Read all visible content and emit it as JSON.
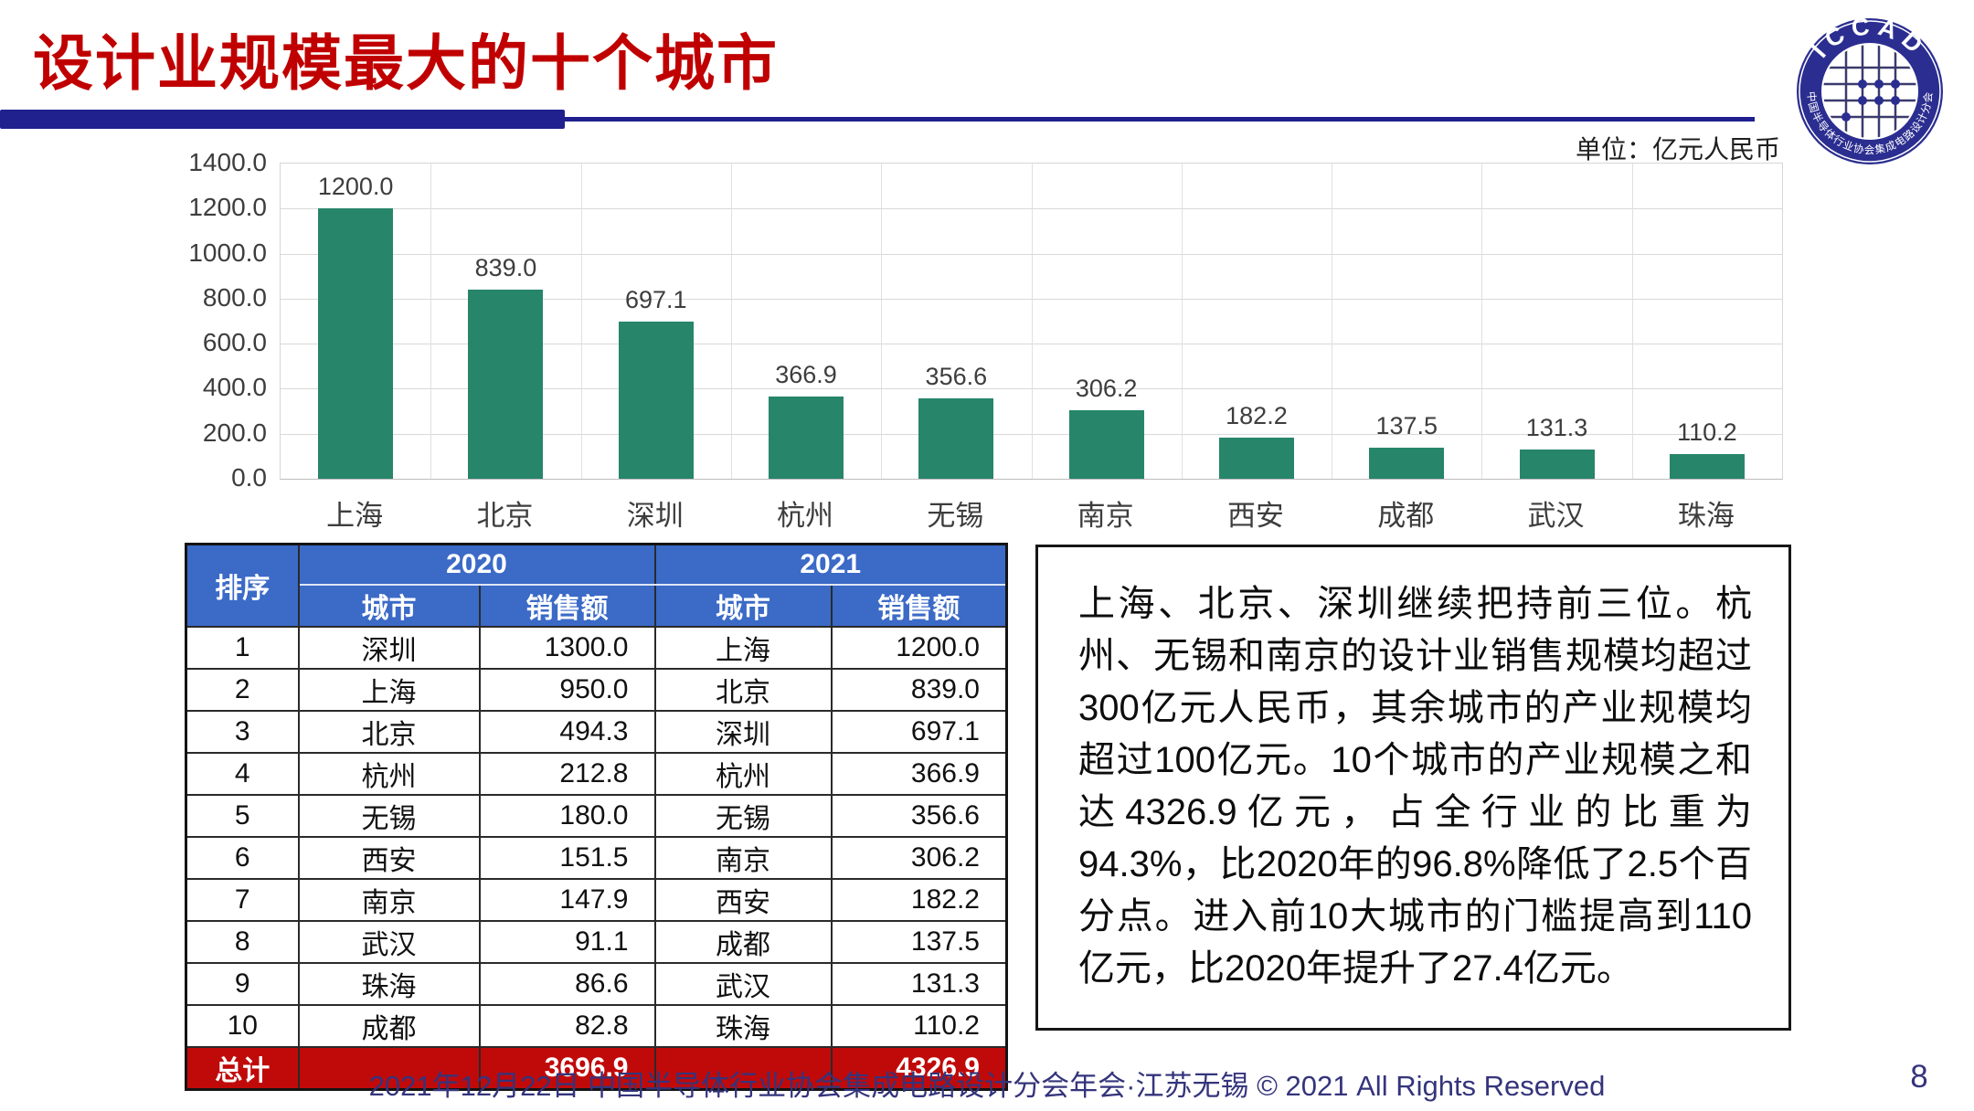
{
  "title": "设计业规模最大的十个城市",
  "unit_label": "单位：亿元人民币",
  "logo": {
    "acronym": "ICCAD",
    "ring_text": "中国半导体行业协会集成电路设计分会"
  },
  "chart_data": {
    "type": "bar",
    "title": "",
    "xlabel": "",
    "ylabel": "",
    "unit": "亿元人民币",
    "categories": [
      "上海",
      "北京",
      "深圳",
      "杭州",
      "无锡",
      "南京",
      "西安",
      "成都",
      "武汉",
      "珠海"
    ],
    "values": [
      1200.0,
      839.0,
      697.1,
      366.9,
      356.6,
      306.2,
      182.2,
      137.5,
      131.3,
      110.2
    ],
    "value_labels": [
      "1200.0",
      "839.0",
      "697.1",
      "366.9",
      "356.6",
      "306.2",
      "182.2",
      "137.5",
      "131.3",
      "110.2"
    ],
    "ylim": [
      0,
      1400
    ],
    "y_ticks": [
      "1400.0",
      "1200.0",
      "1000.0",
      "800.0",
      "600.0",
      "400.0",
      "200.0",
      "0.0"
    ],
    "grid": true,
    "legend": "none",
    "bar_color": "#27856A"
  },
  "table": {
    "col_headers": {
      "rank": "排序",
      "year2020": "2020",
      "year2021": "2021",
      "city": "城市",
      "sales": "销售额"
    },
    "rows": [
      {
        "rank": "1",
        "city2020": "深圳",
        "sales2020": "1300.0",
        "city2021": "上海",
        "sales2021": "1200.0"
      },
      {
        "rank": "2",
        "city2020": "上海",
        "sales2020": "950.0",
        "city2021": "北京",
        "sales2021": "839.0"
      },
      {
        "rank": "3",
        "city2020": "北京",
        "sales2020": "494.3",
        "city2021": "深圳",
        "sales2021": "697.1"
      },
      {
        "rank": "4",
        "city2020": "杭州",
        "sales2020": "212.8",
        "city2021": "杭州",
        "sales2021": "366.9"
      },
      {
        "rank": "5",
        "city2020": "无锡",
        "sales2020": "180.0",
        "city2021": "无锡",
        "sales2021": "356.6"
      },
      {
        "rank": "6",
        "city2020": "西安",
        "sales2020": "151.5",
        "city2021": "南京",
        "sales2021": "306.2"
      },
      {
        "rank": "7",
        "city2020": "南京",
        "sales2020": "147.9",
        "city2021": "西安",
        "sales2021": "182.2"
      },
      {
        "rank": "8",
        "city2020": "武汉",
        "sales2020": "91.1",
        "city2021": "成都",
        "sales2021": "137.5"
      },
      {
        "rank": "9",
        "city2020": "珠海",
        "sales2020": "86.6",
        "city2021": "武汉",
        "sales2021": "131.3"
      },
      {
        "rank": "10",
        "city2020": "成都",
        "sales2020": "82.8",
        "city2021": "珠海",
        "sales2021": "110.2"
      }
    ],
    "total": {
      "label": "总计",
      "sales2020": "3696.9",
      "sales2021": "4326.9"
    }
  },
  "commentary": "上海、北京、深圳继续把持前三位。杭州、无锡和南京的设计业销售规模均超过300亿元人民币，其余城市的产业规模均超过100亿元。10个城市的产业规模之和达4326.9亿元，占全行业的比重为94.3%，比2020年的96.8%降低了2.5个百分点。进入前10大城市的门槛提高到110亿元，比2020年提升了27.4亿元。",
  "footer": {
    "text": "2021年12月22日 中国半导体行业协会集成电路设计分会年会·江苏无锡 © 2021 All Rights Reserved",
    "page_number": "8"
  },
  "colors": {
    "title": "#C00000",
    "accent_rule": "#20208F",
    "chart_bar": "#27856A",
    "table_header_bg": "#3B6AC7",
    "table_total_bg": "#C00A0A",
    "footer_text": "#34347C"
  }
}
